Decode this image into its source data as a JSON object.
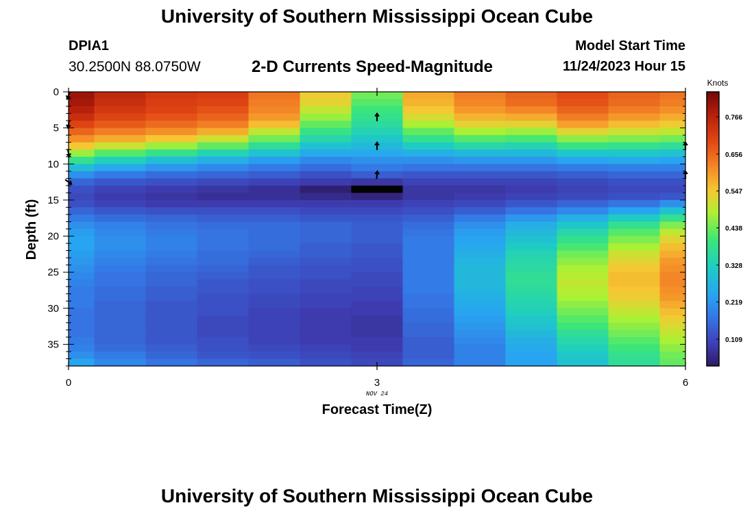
{
  "header": {
    "title": "University of Southern Mississippi Ocean Cube",
    "station": "DPIA1",
    "coords": "30.2500N  88.0750W",
    "subtitle": "2-D Currents Speed-Magnitude",
    "model_label": "Model Start Time",
    "model_time": "11/24/2023 Hour 15"
  },
  "footer": {
    "title": "University of Southern Mississippi Ocean Cube"
  },
  "chart_data": {
    "type": "heatmap",
    "title": "2-D Currents Speed-Magnitude",
    "xlabel": "Forecast Time(Z)",
    "ylabel": "Depth (ft)",
    "x_date_label": "NOV 24",
    "xlim": [
      0,
      6
    ],
    "ylim": [
      38,
      0
    ],
    "x_ticks": [
      0,
      3,
      6
    ],
    "y_ticks": [
      0,
      5,
      10,
      15,
      20,
      25,
      30,
      35
    ],
    "colorbar": {
      "label": "Knots",
      "ticks": [
        0.766,
        0.656,
        0.547,
        0.438,
        0.328,
        0.219,
        0.109
      ],
      "range": [
        0.03,
        0.84
      ],
      "position": "right"
    },
    "time_columns": [
      0,
      0.5,
      1,
      1.5,
      2,
      2.5,
      3,
      3.5,
      4,
      4.5,
      5,
      5.5,
      6
    ],
    "depth_rows": [
      0,
      1,
      2,
      3,
      4,
      5,
      6,
      7,
      8,
      9,
      10,
      11,
      12,
      13,
      14,
      15,
      16,
      17,
      18,
      19,
      20,
      21,
      22,
      23,
      24,
      25,
      26,
      27,
      28,
      29,
      30,
      31,
      32,
      33,
      34,
      35,
      36,
      37
    ],
    "speed_knots": [
      [
        0.8,
        0.75,
        0.72,
        0.71,
        0.64,
        0.54,
        0.44,
        0.58,
        0.63,
        0.66,
        0.69,
        0.66,
        0.64
      ],
      [
        0.79,
        0.74,
        0.71,
        0.7,
        0.63,
        0.53,
        0.42,
        0.57,
        0.62,
        0.65,
        0.68,
        0.65,
        0.63
      ],
      [
        0.77,
        0.72,
        0.7,
        0.68,
        0.62,
        0.5,
        0.4,
        0.55,
        0.6,
        0.62,
        0.66,
        0.63,
        0.61
      ],
      [
        0.74,
        0.7,
        0.68,
        0.66,
        0.6,
        0.47,
        0.38,
        0.52,
        0.57,
        0.58,
        0.63,
        0.6,
        0.58
      ],
      [
        0.7,
        0.67,
        0.65,
        0.63,
        0.56,
        0.43,
        0.36,
        0.48,
        0.53,
        0.53,
        0.59,
        0.56,
        0.54
      ],
      [
        0.66,
        0.63,
        0.61,
        0.58,
        0.5,
        0.39,
        0.34,
        0.43,
        0.48,
        0.47,
        0.53,
        0.51,
        0.5
      ],
      [
        0.61,
        0.58,
        0.55,
        0.51,
        0.44,
        0.35,
        0.31,
        0.38,
        0.42,
        0.41,
        0.46,
        0.45,
        0.44
      ],
      [
        0.55,
        0.51,
        0.47,
        0.43,
        0.37,
        0.3,
        0.28,
        0.32,
        0.35,
        0.34,
        0.39,
        0.38,
        0.37
      ],
      [
        0.47,
        0.42,
        0.38,
        0.34,
        0.3,
        0.25,
        0.25,
        0.26,
        0.28,
        0.28,
        0.31,
        0.31,
        0.3
      ],
      [
        0.38,
        0.33,
        0.29,
        0.26,
        0.23,
        0.2,
        0.21,
        0.21,
        0.22,
        0.22,
        0.24,
        0.25,
        0.24
      ],
      [
        0.29,
        0.25,
        0.22,
        0.2,
        0.18,
        0.16,
        0.18,
        0.17,
        0.17,
        0.17,
        0.18,
        0.19,
        0.19
      ],
      [
        0.21,
        0.18,
        0.16,
        0.15,
        0.14,
        0.12,
        0.14,
        0.13,
        0.13,
        0.13,
        0.14,
        0.15,
        0.15
      ],
      [
        0.15,
        0.13,
        0.12,
        0.11,
        0.1,
        0.09,
        0.08,
        0.1,
        0.1,
        0.1,
        0.11,
        0.12,
        0.12
      ],
      [
        0.12,
        0.1,
        0.09,
        0.08,
        0.07,
        0.04,
        0.0,
        0.08,
        0.08,
        0.09,
        0.1,
        0.11,
        0.11
      ],
      [
        0.11,
        0.09,
        0.08,
        0.07,
        0.07,
        0.06,
        0.05,
        0.08,
        0.09,
        0.1,
        0.11,
        0.12,
        0.13
      ],
      [
        0.12,
        0.1,
        0.09,
        0.09,
        0.09,
        0.09,
        0.09,
        0.1,
        0.11,
        0.13,
        0.15,
        0.17,
        0.21
      ],
      [
        0.15,
        0.13,
        0.12,
        0.12,
        0.12,
        0.11,
        0.11,
        0.12,
        0.14,
        0.17,
        0.2,
        0.24,
        0.3
      ],
      [
        0.18,
        0.16,
        0.15,
        0.14,
        0.14,
        0.13,
        0.13,
        0.14,
        0.18,
        0.22,
        0.26,
        0.32,
        0.38
      ],
      [
        0.21,
        0.19,
        0.17,
        0.16,
        0.16,
        0.15,
        0.14,
        0.16,
        0.21,
        0.26,
        0.31,
        0.38,
        0.45
      ],
      [
        0.23,
        0.2,
        0.18,
        0.17,
        0.16,
        0.15,
        0.14,
        0.17,
        0.23,
        0.28,
        0.35,
        0.42,
        0.5
      ],
      [
        0.24,
        0.21,
        0.19,
        0.17,
        0.16,
        0.15,
        0.14,
        0.18,
        0.24,
        0.3,
        0.38,
        0.45,
        0.53
      ],
      [
        0.24,
        0.21,
        0.19,
        0.17,
        0.16,
        0.14,
        0.13,
        0.18,
        0.25,
        0.32,
        0.41,
        0.48,
        0.56
      ],
      [
        0.23,
        0.2,
        0.18,
        0.16,
        0.15,
        0.14,
        0.13,
        0.18,
        0.26,
        0.34,
        0.44,
        0.51,
        0.58
      ],
      [
        0.22,
        0.19,
        0.17,
        0.16,
        0.14,
        0.13,
        0.12,
        0.18,
        0.27,
        0.35,
        0.46,
        0.53,
        0.6
      ],
      [
        0.21,
        0.18,
        0.16,
        0.15,
        0.13,
        0.12,
        0.12,
        0.18,
        0.28,
        0.36,
        0.48,
        0.55,
        0.61
      ],
      [
        0.2,
        0.17,
        0.15,
        0.14,
        0.13,
        0.12,
        0.11,
        0.18,
        0.28,
        0.37,
        0.49,
        0.56,
        0.62
      ],
      [
        0.19,
        0.17,
        0.15,
        0.13,
        0.12,
        0.11,
        0.11,
        0.18,
        0.28,
        0.37,
        0.5,
        0.56,
        0.62
      ],
      [
        0.18,
        0.16,
        0.14,
        0.13,
        0.12,
        0.11,
        0.1,
        0.18,
        0.27,
        0.36,
        0.49,
        0.55,
        0.61
      ],
      [
        0.18,
        0.16,
        0.14,
        0.12,
        0.11,
        0.1,
        0.1,
        0.17,
        0.26,
        0.35,
        0.48,
        0.54,
        0.6
      ],
      [
        0.18,
        0.15,
        0.13,
        0.12,
        0.11,
        0.1,
        0.09,
        0.17,
        0.25,
        0.34,
        0.46,
        0.52,
        0.58
      ],
      [
        0.17,
        0.15,
        0.13,
        0.12,
        0.1,
        0.09,
        0.09,
        0.16,
        0.24,
        0.33,
        0.44,
        0.5,
        0.56
      ],
      [
        0.17,
        0.15,
        0.13,
        0.11,
        0.1,
        0.09,
        0.08,
        0.16,
        0.23,
        0.31,
        0.42,
        0.48,
        0.54
      ],
      [
        0.17,
        0.15,
        0.13,
        0.11,
        0.1,
        0.09,
        0.08,
        0.15,
        0.22,
        0.3,
        0.4,
        0.46,
        0.52
      ],
      [
        0.17,
        0.15,
        0.13,
        0.11,
        0.1,
        0.09,
        0.08,
        0.15,
        0.21,
        0.28,
        0.37,
        0.44,
        0.5
      ],
      [
        0.18,
        0.15,
        0.13,
        0.12,
        0.1,
        0.09,
        0.09,
        0.14,
        0.2,
        0.26,
        0.35,
        0.42,
        0.48
      ],
      [
        0.19,
        0.16,
        0.14,
        0.12,
        0.11,
        0.1,
        0.09,
        0.14,
        0.19,
        0.25,
        0.33,
        0.4,
        0.46
      ],
      [
        0.21,
        0.18,
        0.15,
        0.13,
        0.12,
        0.11,
        0.1,
        0.14,
        0.19,
        0.24,
        0.31,
        0.38,
        0.44
      ],
      [
        0.24,
        0.2,
        0.17,
        0.15,
        0.14,
        0.12,
        0.11,
        0.15,
        0.19,
        0.24,
        0.3,
        0.37,
        0.43
      ]
    ],
    "vectors": [
      {
        "time": 0,
        "depth": 0.5,
        "direction_deg": 200
      },
      {
        "time": 0,
        "depth": 4.5,
        "direction_deg": 190
      },
      {
        "time": 0,
        "depth": 8.5,
        "direction_deg": 170
      },
      {
        "time": 0,
        "depth": 12.5,
        "direction_deg": 125
      },
      {
        "time": 3,
        "depth": 3.5,
        "direction_deg": 0
      },
      {
        "time": 3,
        "depth": 7.5,
        "direction_deg": 0
      },
      {
        "time": 3,
        "depth": 11.5,
        "direction_deg": 5
      },
      {
        "time": 6,
        "depth": 7.5,
        "direction_deg": 0
      },
      {
        "time": 6,
        "depth": 11.5,
        "direction_deg": 0
      }
    ]
  }
}
